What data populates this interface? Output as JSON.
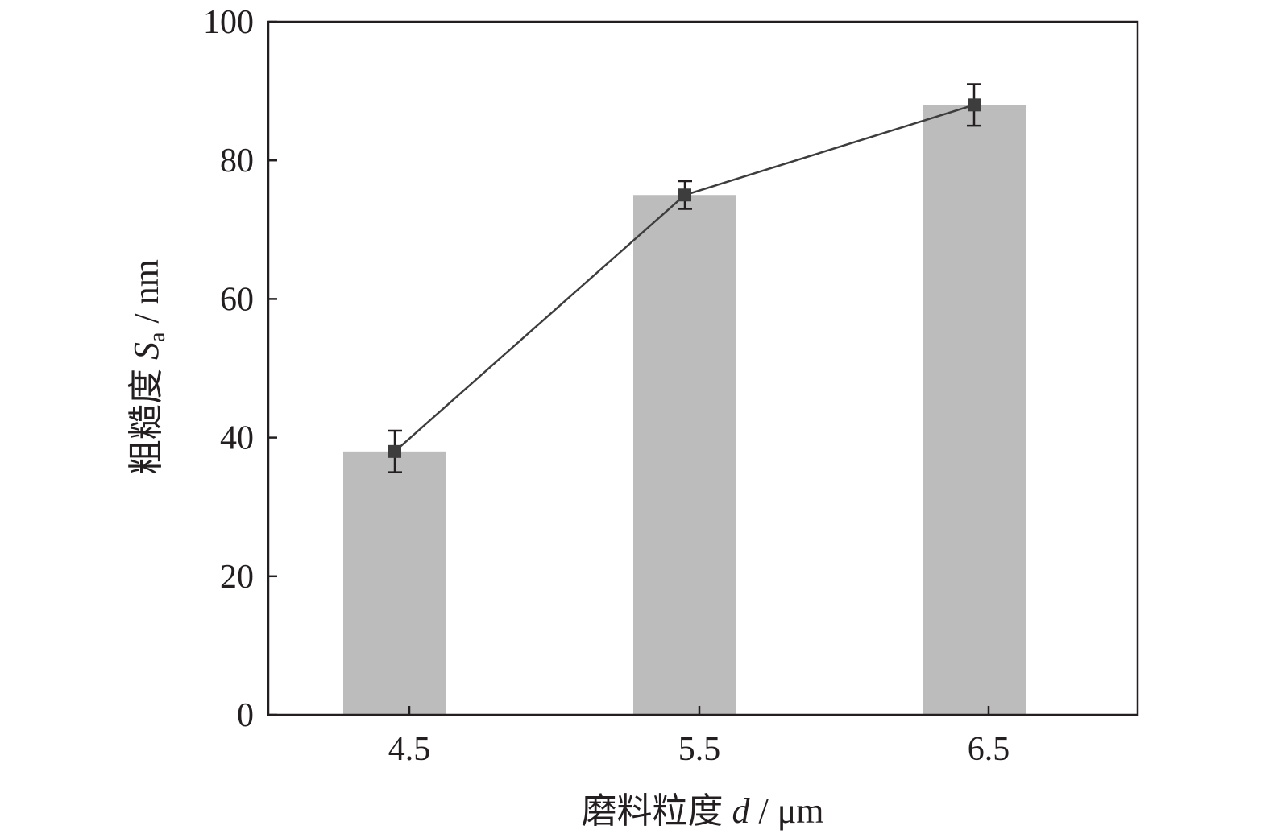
{
  "chart_data": {
    "type": "bar",
    "title": "",
    "categories": [
      "4.5",
      "5.5",
      "6.5"
    ],
    "series": [
      {
        "type": "bar",
        "values": [
          38,
          75,
          88
        ]
      },
      {
        "type": "line",
        "values": [
          38,
          75,
          88
        ],
        "error": [
          3,
          2,
          3
        ]
      }
    ],
    "xlabel": {
      "prefix": "磨料粒度 ",
      "var": "d",
      "unit": " / μm"
    },
    "ylabel": {
      "prefix": "粗糙度 ",
      "var": "S",
      "sub": "a",
      "unit": " / nm"
    },
    "yticks": [
      "0",
      "20",
      "40",
      "60",
      "80",
      "100"
    ],
    "ylim": [
      0,
      100
    ],
    "grid": false,
    "colors": {
      "bar": "#bcbcbc",
      "line": "#3d3d3d",
      "axis": "#231f20"
    }
  }
}
